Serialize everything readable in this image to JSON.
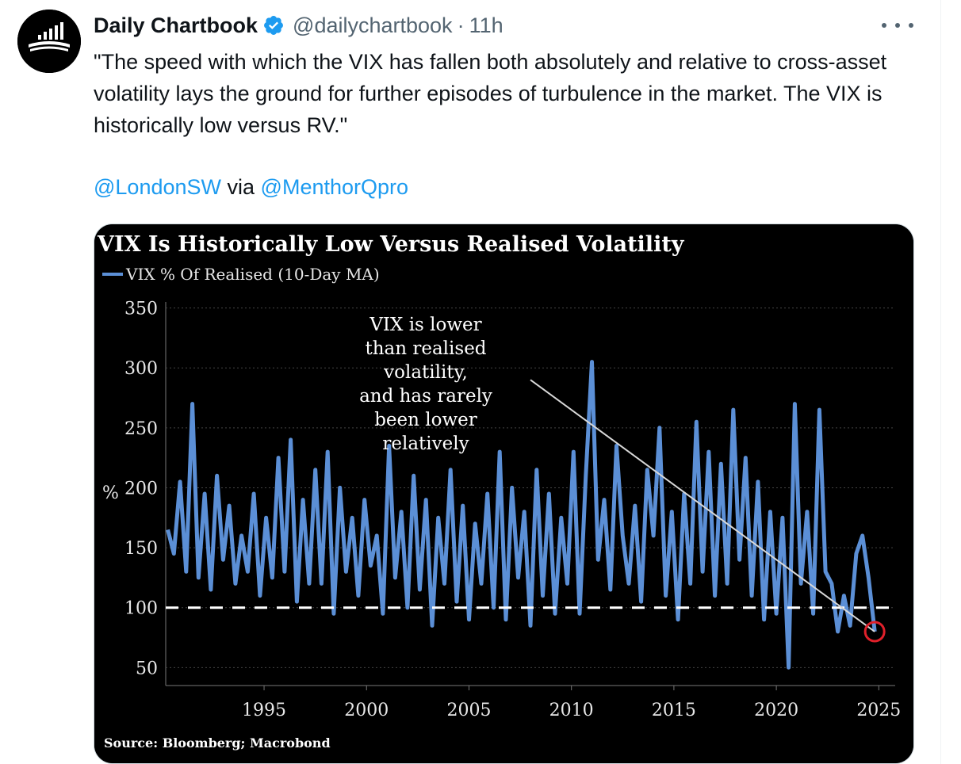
{
  "tweet": {
    "display_name": "Daily Chartbook",
    "handle": "@dailychartbook",
    "separator": "·",
    "time": "11h",
    "text": "\"The speed with which the VIX has fallen both absolutely and relative to cross-asset volatility lays the ground for further episodes of turbulence in the market. The VIX is historically low versus RV.\"",
    "credit_mention_1": "@LondonSW",
    "credit_via": "via",
    "credit_mention_2": "@MenthorQpro",
    "more_icon": "more-horizontal-icon",
    "verified_icon": "verified-badge-icon",
    "verified_color": "#1d9bf0"
  },
  "chart_data": {
    "type": "line",
    "title": "VIX Is Historically Low Versus Realised Volatility",
    "legend": [
      "VIX % Of Realised (10-Day MA)"
    ],
    "y_axis_label": "%",
    "ylim": [
      35,
      355
    ],
    "yticks": [
      50,
      100,
      150,
      200,
      250,
      300,
      350
    ],
    "xlim": [
      1990.2,
      2025.8
    ],
    "xticks": [
      1995,
      2000,
      2005,
      2010,
      2015,
      2020,
      2025
    ],
    "reference_line": {
      "y": 100,
      "style": "dashed",
      "color": "#ffffff"
    },
    "highlight": {
      "x": 2024.8,
      "y": 80,
      "color": "#e0202a"
    },
    "annotation": {
      "lines": [
        "VIX is lower",
        "than realised",
        "volatility,",
        "and has rarely",
        "been lower",
        "relatively"
      ],
      "arrow_from": {
        "x": 2008.0,
        "y": 290
      },
      "arrow_to": {
        "x": 2024.8,
        "y": 80
      }
    },
    "source": "Source: Bloomberg; Macrobond",
    "series": [
      {
        "name": "VIX % Of Realised (10-Day MA)",
        "color": "#5b8fd6",
        "x": [
          1990.3,
          1990.6,
          1990.9,
          1991.2,
          1991.5,
          1991.8,
          1992.1,
          1992.4,
          1992.7,
          1993.0,
          1993.3,
          1993.6,
          1993.9,
          1994.2,
          1994.5,
          1994.8,
          1995.1,
          1995.4,
          1995.7,
          1996.0,
          1996.3,
          1996.6,
          1996.9,
          1997.2,
          1997.5,
          1997.8,
          1998.1,
          1998.4,
          1998.7,
          1999.0,
          1999.3,
          1999.6,
          1999.9,
          2000.2,
          2000.5,
          2000.8,
          2001.1,
          2001.4,
          2001.7,
          2002.0,
          2002.3,
          2002.6,
          2002.9,
          2003.2,
          2003.5,
          2003.8,
          2004.1,
          2004.4,
          2004.7,
          2005.0,
          2005.3,
          2005.6,
          2005.9,
          2006.2,
          2006.5,
          2006.8,
          2007.1,
          2007.4,
          2007.7,
          2008.0,
          2008.3,
          2008.6,
          2008.9,
          2009.2,
          2009.5,
          2009.8,
          2010.1,
          2010.4,
          2010.7,
          2011.0,
          2011.3,
          2011.6,
          2011.9,
          2012.2,
          2012.5,
          2012.8,
          2013.1,
          2013.4,
          2013.7,
          2014.0,
          2014.3,
          2014.6,
          2014.9,
          2015.2,
          2015.5,
          2015.8,
          2016.1,
          2016.4,
          2016.7,
          2017.0,
          2017.3,
          2017.6,
          2017.9,
          2018.2,
          2018.5,
          2018.8,
          2019.1,
          2019.4,
          2019.7,
          2020.0,
          2020.3,
          2020.6,
          2020.9,
          2021.2,
          2021.5,
          2021.8,
          2022.1,
          2022.4,
          2022.7,
          2023.0,
          2023.3,
          2023.6,
          2023.9,
          2024.2,
          2024.5,
          2024.8
        ],
        "values": [
          165,
          145,
          205,
          130,
          270,
          125,
          195,
          115,
          210,
          140,
          185,
          120,
          160,
          130,
          195,
          110,
          175,
          125,
          225,
          130,
          240,
          105,
          190,
          120,
          215,
          120,
          230,
          95,
          200,
          130,
          175,
          110,
          190,
          135,
          160,
          95,
          235,
          125,
          180,
          100,
          210,
          115,
          190,
          85,
          175,
          120,
          215,
          105,
          185,
          90,
          170,
          120,
          195,
          100,
          230,
          90,
          200,
          125,
          180,
          85,
          215,
          110,
          195,
          95,
          175,
          120,
          230,
          95,
          210,
          305,
          140,
          190,
          115,
          235,
          160,
          120,
          185,
          105,
          215,
          160,
          250,
          110,
          180,
          90,
          195,
          120,
          255,
          130,
          230,
          110,
          220,
          120,
          265,
          140,
          225,
          110,
          205,
          90,
          180,
          95,
          175,
          50,
          270,
          120,
          180,
          95,
          265,
          130,
          120,
          80,
          110,
          85,
          145,
          160,
          125,
          80
        ]
      }
    ]
  }
}
